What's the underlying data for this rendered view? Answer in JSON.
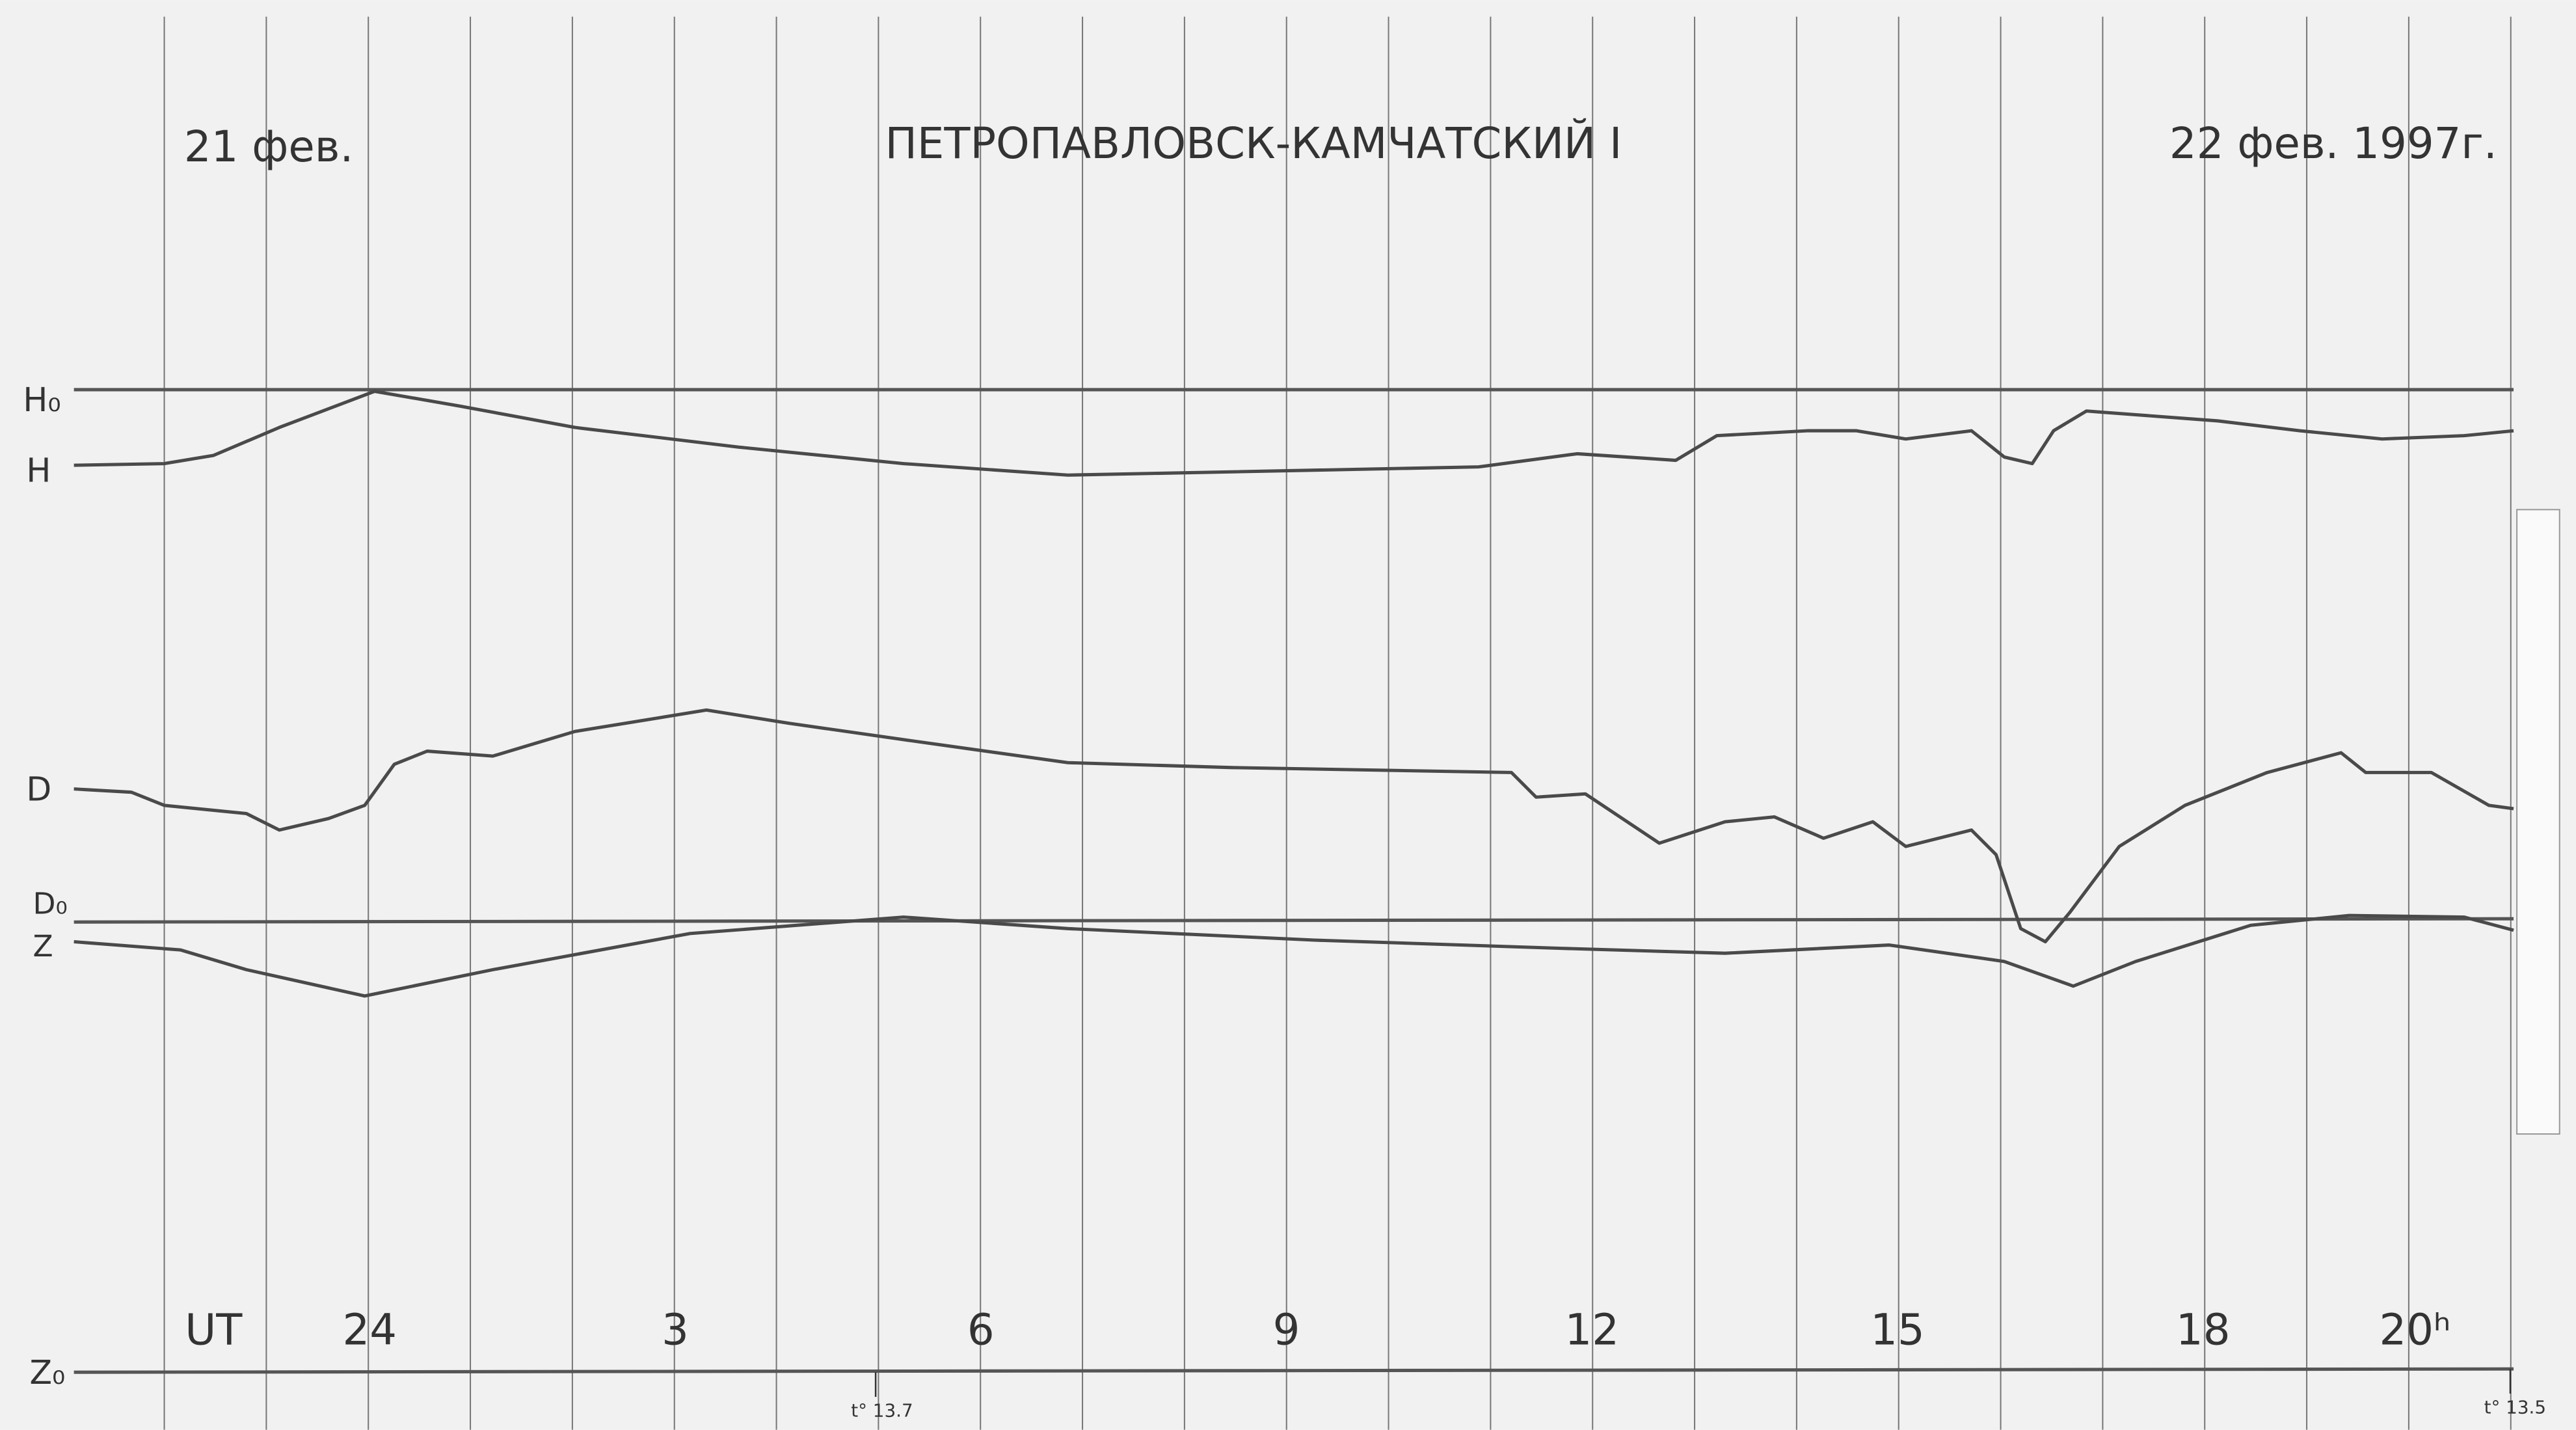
{
  "header": {
    "date_left": "21 фев.",
    "title": "ПЕТРОПАВЛОВСК-КАМЧАТСКИЙ I",
    "date_right": "22 фев. 1997г."
  },
  "trace_labels": {
    "h0": "H₀",
    "h": "H",
    "d": "D",
    "d0": "D₀",
    "z": "Z",
    "z0": "Z₀"
  },
  "time_axis": {
    "label": "UT",
    "hours": [
      "24",
      "3",
      "6",
      "9",
      "12",
      "15",
      "18",
      "20ʰ"
    ]
  },
  "temperature_marks": [
    "t° 13.7",
    "t° 13.5"
  ]
}
